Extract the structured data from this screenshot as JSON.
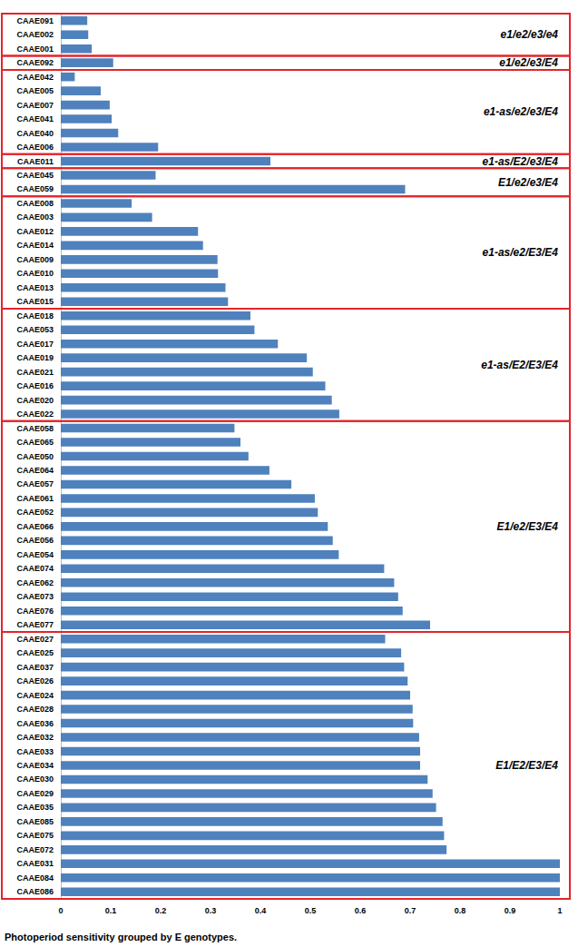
{
  "chart_data": {
    "type": "bar",
    "orientation": "horizontal",
    "caption": "Photoperiod sensitivity grouped by E genotypes.",
    "categories": [
      "CAAE091",
      "CAAE002",
      "CAAE001",
      "CAAE092",
      "CAAE042",
      "CAAE005",
      "CAAE007",
      "CAAE041",
      "CAAE040",
      "CAAE006",
      "CAAE011",
      "CAAE045",
      "CAAE059",
      "CAAE008",
      "CAAE003",
      "CAAE012",
      "CAAE014",
      "CAAE009",
      "CAAE010",
      "CAAE013",
      "CAAE015",
      "CAAE018",
      "CAAE053",
      "CAAE017",
      "CAAE019",
      "CAAE021",
      "CAAE016",
      "CAAE020",
      "CAAE022",
      "CAAE058",
      "CAAE065",
      "CAAE050",
      "CAAE064",
      "CAAE057",
      "CAAE061",
      "CAAE052",
      "CAAE066",
      "CAAE056",
      "CAAE054",
      "CAAE074",
      "CAAE062",
      "CAAE073",
      "CAAE076",
      "CAAE077",
      "CAAE027",
      "CAAE025",
      "CAAE037",
      "CAAE026",
      "CAAE024",
      "CAAE028",
      "CAAE036",
      "CAAE032",
      "CAAE033",
      "CAAE034",
      "CAAE030",
      "CAAE029",
      "CAAE035",
      "CAAE085",
      "CAAE075",
      "CAAE072",
      "CAAE031",
      "CAAE084",
      "CAAE086"
    ],
    "values": [
      0.053,
      0.055,
      0.062,
      0.105,
      0.028,
      0.08,
      0.098,
      0.102,
      0.115,
      0.195,
      0.42,
      0.19,
      0.69,
      0.142,
      0.183,
      0.275,
      0.285,
      0.314,
      0.315,
      0.33,
      0.335,
      0.38,
      0.388,
      0.435,
      0.493,
      0.505,
      0.53,
      0.543,
      0.558,
      0.348,
      0.36,
      0.376,
      0.418,
      0.462,
      0.509,
      0.515,
      0.535,
      0.545,
      0.557,
      0.648,
      0.668,
      0.676,
      0.685,
      0.74,
      0.65,
      0.682,
      0.688,
      0.695,
      0.7,
      0.705,
      0.706,
      0.718,
      0.72,
      0.72,
      0.735,
      0.745,
      0.752,
      0.765,
      0.768,
      0.773,
      1,
      1,
      1
    ],
    "groups": [
      "e1/e2/e3/e4",
      "e1/e2/e3/e4",
      "e1/e2/e3/e4",
      "e1/e2/e3/E4",
      "e1-as/e2/e3/E4",
      "e1-as/e2/e3/E4",
      "e1-as/e2/e3/E4",
      "e1-as/e2/e3/E4",
      "e1-as/e2/e3/E4",
      "e1-as/e2/e3/E4",
      "e1-as/E2/e3/E4",
      "E1/e2/e3/E4",
      "E1/e2/e3/E4",
      "e1-as/e2/E3/E4",
      "e1-as/e2/E3/E4",
      "e1-as/e2/E3/E4",
      "e1-as/e2/E3/E4",
      "e1-as/e2/E3/E4",
      "e1-as/e2/E3/E4",
      "e1-as/e2/E3/E4",
      "e1-as/e2/E3/E4",
      "e1-as/E2/E3/E4",
      "e1-as/E2/E3/E4",
      "e1-as/E2/E3/E4",
      "e1-as/E2/E3/E4",
      "e1-as/E2/E3/E4",
      "e1-as/E2/E3/E4",
      "e1-as/E2/E3/E4",
      "e1-as/E2/E3/E4",
      "E1/e2/E3/E4",
      "E1/e2/E3/E4",
      "E1/e2/E3/E4",
      "E1/e2/E3/E4",
      "E1/e2/E3/E4",
      "E1/e2/E3/E4",
      "E1/e2/E3/E4",
      "E1/e2/E3/E4",
      "E1/e2/E3/E4",
      "E1/e2/E3/E4",
      "E1/e2/E3/E4",
      "E1/e2/E3/E4",
      "E1/e2/E3/E4",
      "E1/e2/E3/E4",
      "E1/e2/E3/E4",
      "E1/E2/E3/E4",
      "E1/E2/E3/E4",
      "E1/E2/E3/E4",
      "E1/E2/E3/E4",
      "E1/E2/E3/E4",
      "E1/E2/E3/E4",
      "E1/E2/E3/E4",
      "E1/E2/E3/E4",
      "E1/E2/E3/E4",
      "E1/E2/E3/E4",
      "E1/E2/E3/E4",
      "E1/E2/E3/E4",
      "E1/E2/E3/E4",
      "E1/E2/E3/E4",
      "E1/E2/E3/E4",
      "E1/E2/E3/E4",
      "E1/E2/E3/E4",
      "E1/E2/E3/E4",
      "E1/E2/E3/E4"
    ],
    "color": "#4f81bd",
    "xlim": [
      0,
      1
    ],
    "xticks": [
      0,
      0.1,
      0.2,
      0.3,
      0.4,
      0.5,
      0.6,
      0.7,
      0.8,
      0.9,
      1
    ],
    "grid": false
  }
}
